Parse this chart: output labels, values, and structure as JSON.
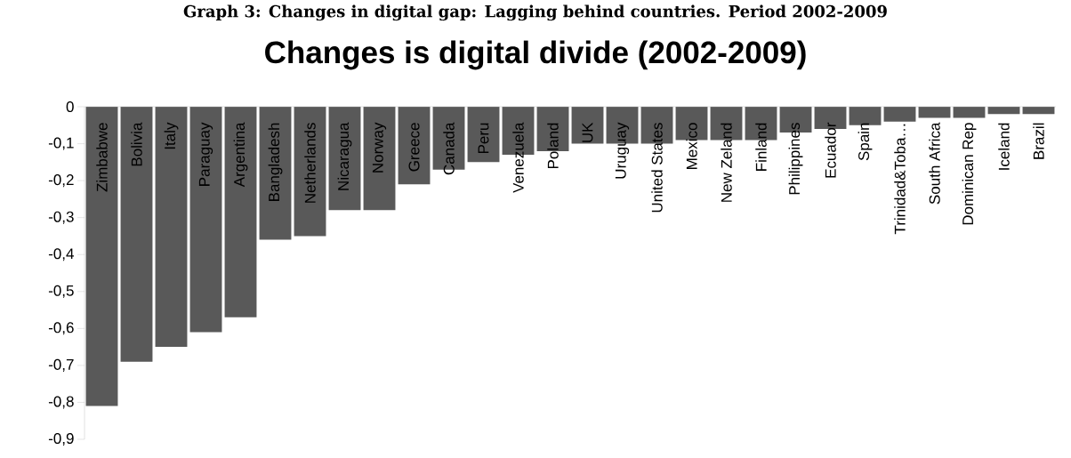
{
  "chart_data": {
    "type": "bar",
    "title": "Changes is digital divide (2002-2009)",
    "annotations": [
      "Graph 3: Changes in digital gap: Lagging behind countries. Period 2002-2009"
    ],
    "categories": [
      "Zimbabwe",
      "Bolivia",
      "Italy",
      "Paraguay",
      "Argentina",
      "Bangladesh",
      "Netherlands",
      "Nicaragua",
      "Norway",
      "Greece",
      "Canada",
      "Peru",
      "Venezuela",
      "Poland",
      "UK",
      "Uruguay",
      "United States",
      "Mexico",
      "New Zeland",
      "Finland",
      "Philippines",
      "Ecuador",
      "Spain",
      "Trinidad&Toba…",
      "South Africa",
      "Dominican Rep",
      "Iceland",
      "Brazil"
    ],
    "values": [
      -0.81,
      -0.69,
      -0.65,
      -0.61,
      -0.57,
      -0.36,
      -0.35,
      -0.28,
      -0.28,
      -0.21,
      -0.17,
      -0.15,
      -0.13,
      -0.12,
      -0.1,
      -0.1,
      -0.1,
      -0.09,
      -0.09,
      -0.09,
      -0.07,
      -0.06,
      -0.05,
      -0.04,
      -0.03,
      -0.03,
      -0.02,
      -0.02
    ],
    "color": "#595959",
    "ylim": [
      -0.9,
      0
    ],
    "yticks": [
      0,
      {
        "value": -0.1,
        "label": "-0,1"
      },
      {
        "value": -0.2,
        "label": "-0,2"
      },
      {
        "value": -0.3,
        "label": "-0,3"
      },
      {
        "value": -0.4,
        "label": "-0,4"
      },
      {
        "value": -0.5,
        "label": "-0,5"
      },
      {
        "value": -0.6,
        "label": "-0,6"
      },
      {
        "value": -0.7,
        "label": "-0,7"
      },
      {
        "value": -0.8,
        "label": "-0,8"
      },
      {
        "value": -0.9,
        "label": "-0,9"
      }
    ],
    "grid": false
  }
}
